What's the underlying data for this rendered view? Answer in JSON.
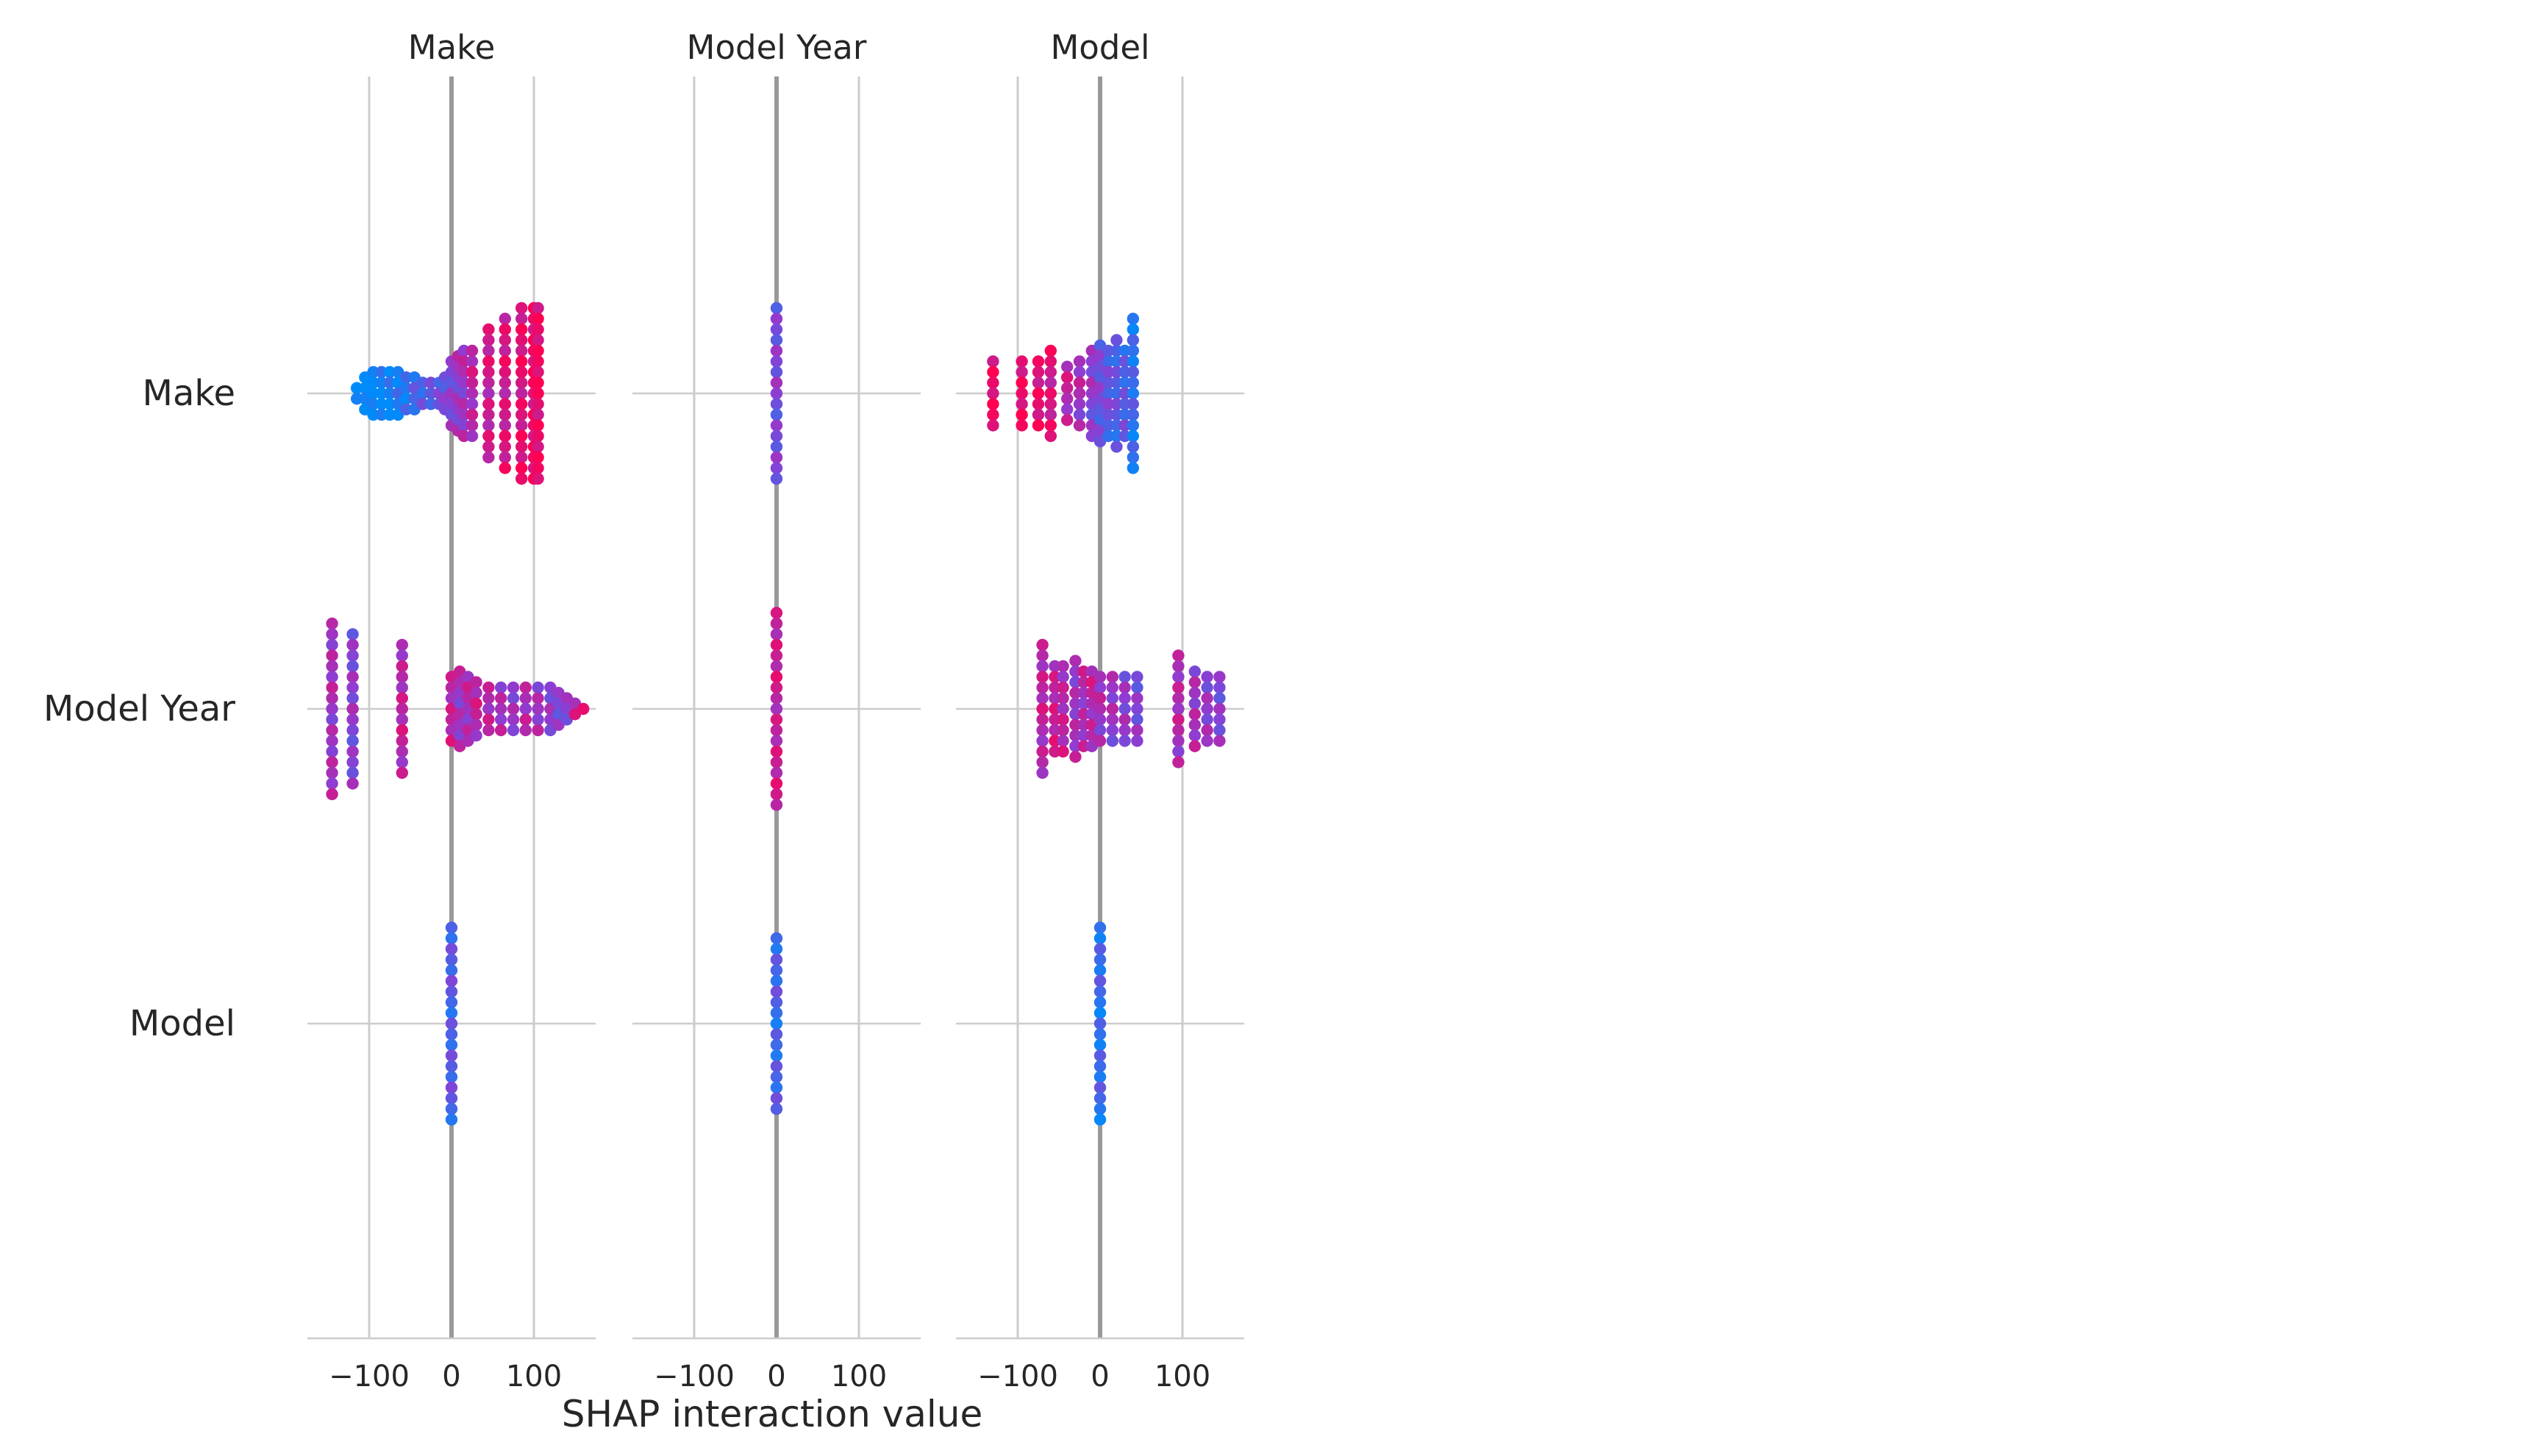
{
  "chart_data": {
    "type": "scatter",
    "title": "",
    "xlabel": "SHAP interaction value",
    "features": [
      "Make",
      "Model Year",
      "Model"
    ],
    "xlim": [
      -175,
      175
    ],
    "xticks": [
      -100,
      0,
      100
    ],
    "xtick_labels": [
      "−100",
      "0",
      "100"
    ],
    "grid": true,
    "colormap": [
      "#008bfb",
      "#ff0052"
    ],
    "panels": [
      {
        "column": "Make",
        "rows": [
          {
            "row": "Make",
            "x_columns": [
              -115,
              -105,
              -95,
              -85,
              -75,
              -65,
              -55,
              -45,
              -35,
              -25,
              -15,
              -8,
              0,
              8,
              15,
              25,
              45,
              65,
              85,
              100,
              105
            ],
            "counts": [
              2,
              4,
              5,
              5,
              5,
              5,
              4,
              4,
              3,
              3,
              3,
              4,
              7,
              8,
              9,
              9,
              13,
              15,
              17,
              17,
              17
            ],
            "colors": [
              0.0,
              0.0,
              0.02,
              0.03,
              0.05,
              0.08,
              0.12,
              0.25,
              0.3,
              0.35,
              0.4,
              0.45,
              0.5,
              0.55,
              0.6,
              0.7,
              0.78,
              0.82,
              0.88,
              0.92,
              0.95
            ]
          },
          {
            "row": "Model Year",
            "x_columns": [
              -145,
              -120,
              -60,
              0,
              10,
              20,
              30,
              45,
              60,
              75,
              90,
              105,
              120,
              130,
              140,
              150,
              160
            ],
            "counts": [
              17,
              15,
              13,
              7,
              8,
              7,
              6,
              5,
              5,
              5,
              5,
              5,
              5,
              4,
              3,
              2,
              1
            ],
            "colors": [
              0.6,
              0.5,
              0.7,
              0.75,
              0.6,
              0.65,
              0.7,
              0.65,
              0.6,
              0.55,
              0.65,
              0.6,
              0.55,
              0.5,
              0.45,
              0.7,
              0.9
            ]
          },
          {
            "row": "Model",
            "x_columns": [
              0
            ],
            "counts": [
              19
            ],
            "colors": [
              0.3
            ]
          }
        ]
      },
      {
        "column": "Model Year",
        "rows": [
          {
            "row": "Make",
            "x_columns": [
              0
            ],
            "counts": [
              17
            ],
            "colors": [
              0.45
            ]
          },
          {
            "row": "Model Year",
            "x_columns": [
              0
            ],
            "counts": [
              19
            ],
            "colors": [
              0.75
            ]
          },
          {
            "row": "Model",
            "x_columns": [
              0
            ],
            "counts": [
              17
            ],
            "colors": [
              0.25
            ]
          }
        ]
      },
      {
        "column": "Model",
        "rows": [
          {
            "row": "Make",
            "x_columns": [
              -130,
              -95,
              -75,
              -60,
              -40,
              -25,
              -10,
              0,
              10,
              20,
              30,
              40
            ],
            "counts": [
              7,
              7,
              7,
              9,
              6,
              7,
              9,
              10,
              9,
              11,
              9,
              15
            ],
            "colors": [
              0.95,
              0.95,
              0.92,
              0.85,
              0.7,
              0.6,
              0.5,
              0.4,
              0.35,
              0.3,
              0.3,
              0.2
            ]
          },
          {
            "row": "Model Year",
            "x_columns": [
              -70,
              -55,
              -45,
              -30,
              -20,
              -10,
              0,
              15,
              30,
              45,
              95,
              115,
              130,
              145
            ],
            "counts": [
              13,
              9,
              9,
              10,
              8,
              8,
              7,
              7,
              7,
              7,
              11,
              8,
              7,
              7
            ],
            "colors": [
              0.7,
              0.75,
              0.7,
              0.6,
              0.65,
              0.7,
              0.6,
              0.55,
              0.5,
              0.45,
              0.65,
              0.6,
              0.55,
              0.5
            ]
          },
          {
            "row": "Model",
            "x_columns": [
              0
            ],
            "counts": [
              19
            ],
            "colors": [
              0.2
            ]
          }
        ]
      }
    ]
  }
}
